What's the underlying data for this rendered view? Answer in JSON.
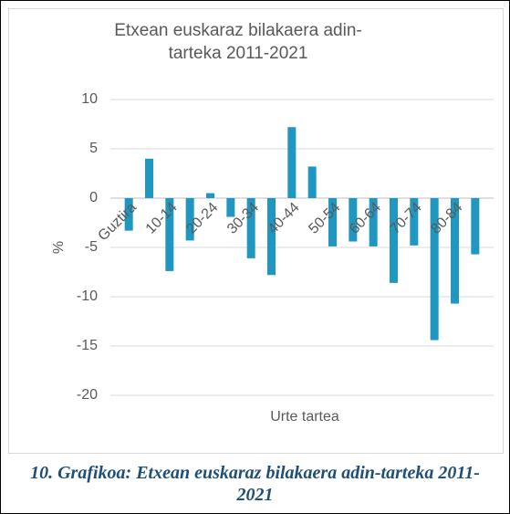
{
  "chart_data": {
    "type": "bar",
    "title": "Etxean euskaraz bilakaera adin-tarteka 2011-2021",
    "caption": "10. Grafikoa: Etxean euskaraz bilakaera adin-tarteka 2011-2021",
    "y_label": "%",
    "x_label": "Urte tartea",
    "categories": [
      "Guztira",
      null,
      "10-14",
      null,
      "20-24",
      null,
      "30-34",
      null,
      "40-44",
      null,
      "50-54",
      null,
      "60-64",
      null,
      "70-74",
      null,
      "80-84",
      null
    ],
    "values": [
      -3.3,
      4.0,
      -7.4,
      -4.3,
      0.5,
      -1.9,
      -6.1,
      -7.8,
      7.2,
      3.2,
      -4.9,
      -4.4,
      -4.9,
      -8.6,
      -4.8,
      -14.4,
      -10.7,
      -5.7
    ],
    "color": "#1f97c0",
    "ylim": [
      -20,
      10
    ],
    "yticks": [
      -20,
      -15,
      -10,
      -5,
      0,
      5,
      10
    ],
    "grid": true
  }
}
